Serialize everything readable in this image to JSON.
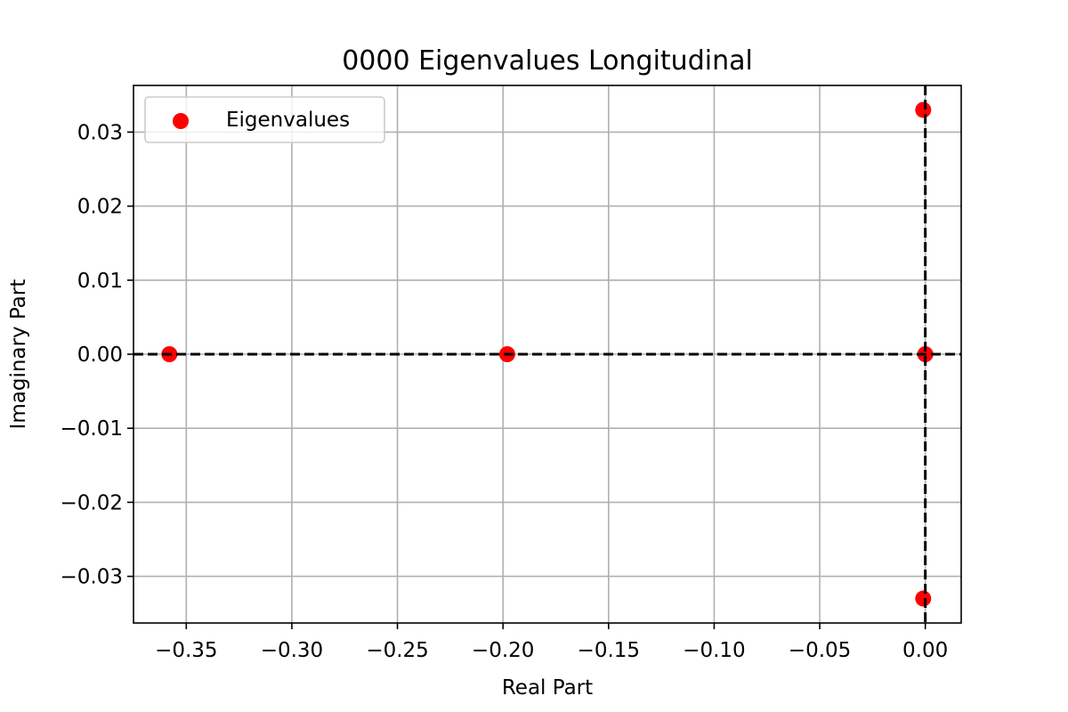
{
  "chart_data": {
    "type": "scatter",
    "title": "0000 Eigenvalues Longitudinal",
    "xlabel": "Real Part",
    "ylabel": "Imaginary Part",
    "xlim": [
      -0.375,
      0.017
    ],
    "ylim": [
      -0.0363,
      0.0363
    ],
    "x_ticks": [
      -0.35,
      -0.3,
      -0.25,
      -0.2,
      -0.15,
      -0.1,
      -0.05,
      0.0
    ],
    "x_tick_labels": [
      "−0.35",
      "−0.30",
      "−0.25",
      "−0.20",
      "−0.15",
      "−0.10",
      "−0.05",
      "0.00"
    ],
    "y_ticks": [
      0.03,
      0.02,
      0.01,
      0.0,
      -0.01,
      -0.02,
      -0.03
    ],
    "y_tick_labels": [
      "0.03",
      "0.02",
      "0.01",
      "0.00",
      "−0.01",
      "−0.02",
      "−0.03"
    ],
    "grid": true,
    "legend_position": "top-left",
    "reference_lines": [
      "x = 0",
      "y = 0"
    ],
    "series": [
      {
        "name": "Eigenvalues",
        "color": "#ff0000",
        "points": [
          {
            "x": -0.358,
            "y": 0.0
          },
          {
            "x": -0.198,
            "y": 0.0
          },
          {
            "x": 0.0,
            "y": 0.0
          },
          {
            "x": -0.001,
            "y": 0.033
          },
          {
            "x": -0.001,
            "y": -0.033
          }
        ]
      }
    ]
  }
}
